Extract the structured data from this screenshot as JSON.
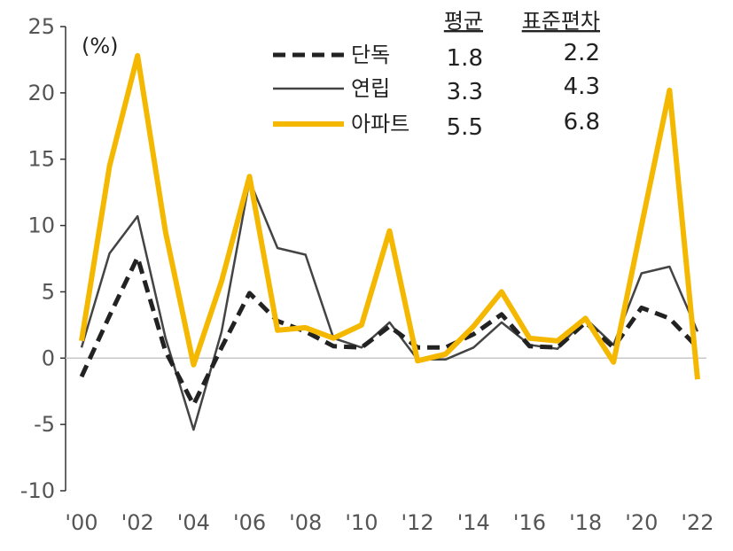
{
  "chart_data": {
    "type": "line",
    "title": "",
    "unit_label": "(%)",
    "x": [
      "2000",
      "2001",
      "2002",
      "2003",
      "2004",
      "2005",
      "2006",
      "2007",
      "2008",
      "2009",
      "2010",
      "2011",
      "2012",
      "2013",
      "2014",
      "2015",
      "2016",
      "2017",
      "2018",
      "2019",
      "2020",
      "2021",
      "2022"
    ],
    "x_tick_labels": [
      "'00",
      "'02",
      "'04",
      "'06",
      "'08",
      "'10",
      "'12",
      "'14",
      "'16",
      "'18",
      "'20",
      "'22"
    ],
    "y_ticks": [
      "25",
      "20",
      "15",
      "10",
      "5",
      "0",
      "-5",
      "-10"
    ],
    "ylim": [
      -10,
      25
    ],
    "grid": false,
    "legend_position": "top-center",
    "stats_headers": {
      "mean": "평균",
      "std": "표준편차"
    },
    "series": [
      {
        "name": "단독",
        "style": "dashed",
        "color": "#222222",
        "mean": "1.8",
        "std": "2.2",
        "values": [
          -1.4,
          3.2,
          7.6,
          0.5,
          -3.5,
          0.8,
          4.9,
          2.8,
          2.0,
          0.9,
          0.8,
          2.4,
          0.8,
          0.8,
          1.8,
          3.3,
          0.9,
          0.8,
          2.7,
          0.8,
          3.8,
          3.0,
          0.8
        ]
      },
      {
        "name": "연립",
        "style": "thin",
        "color": "#444444",
        "mean": "3.3",
        "std": "4.3",
        "values": [
          0.8,
          7.9,
          10.7,
          1.5,
          -5.4,
          2.0,
          13.4,
          8.3,
          7.8,
          1.5,
          0.8,
          2.7,
          -0.1,
          -0.1,
          0.8,
          2.7,
          1.0,
          0.7,
          3.0,
          1.0,
          6.4,
          6.9,
          2.0
        ]
      },
      {
        "name": "아파트",
        "style": "thick",
        "color": "#F5B800",
        "mean": "5.5",
        "std": "6.8",
        "values": [
          1.3,
          14.5,
          22.8,
          9.5,
          -0.5,
          5.8,
          13.7,
          2.1,
          2.3,
          1.5,
          2.5,
          9.6,
          -0.2,
          0.3,
          2.4,
          5.0,
          1.5,
          1.3,
          3.0,
          -0.3,
          10.0,
          20.2,
          -1.6
        ]
      }
    ]
  }
}
